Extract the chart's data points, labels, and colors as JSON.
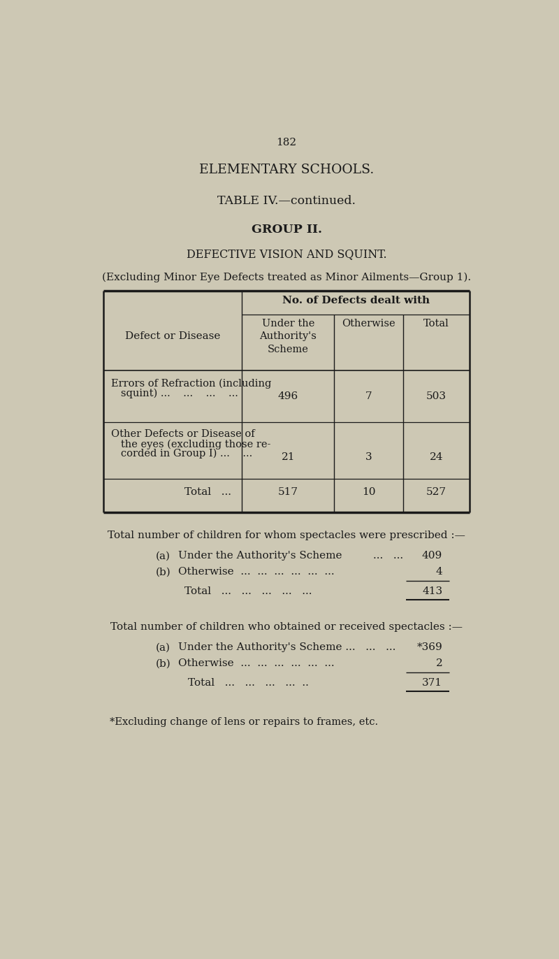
{
  "bg_color": "#cdc8b4",
  "text_color": "#1a1a1a",
  "page_number": "182",
  "title1": "ELEMENTARY SCHOOLS.",
  "title2": "TABLE IV.—continued.",
  "title3": "GROUP II.",
  "title4": "DEFECTIVE VISION AND SQUINT.",
  "subtitle": "(Excluding Minor Eye Defects treated as Minor Ailments—Group 1).",
  "table_header_main": "No. of Defects dealt with",
  "col_header1": "Under the\nAuthority's\nScheme",
  "col_header2": "Otherwise",
  "col_header3": "Total",
  "row_label_col": "Defect or Disease",
  "r1_label1": "Errors of Refraction (including",
  "r1_label2": "   squint) ...    ...    ...    ...",
  "r1_v1": "496",
  "r1_v2": "7",
  "r1_v3": "503",
  "r2_label1": "Other Defects or Disease of",
  "r2_label2": "   the eyes (excluding those re-",
  "r2_label3": "   corded in Group I) ...    ...",
  "r2_v1": "21",
  "r2_v2": "3",
  "r2_v3": "24",
  "tot_label": "Total   ...",
  "tot_v1": "517",
  "tot_v2": "10",
  "tot_v3": "527",
  "prescribed_header": "Total number of children for whom spectacles were prescribed :—",
  "p_a_label": "(a)  Under the Authority's Scheme",
  "p_a_dots": "...   ...",
  "p_a_val": "409",
  "p_b_label": "(b)  Otherwise  ...   ...   ...   ...   ...   ...",
  "p_b_val": "4",
  "p_tot_label": "Total   ...   ...   ...   ...   ...",
  "p_tot_val": "413",
  "obtained_header": "Total number of children who obtained or received spectacles :—",
  "o_a_label": "(a)  Under the Authority's Scheme ...   ...   ...",
  "o_a_val": "*369",
  "o_b_label": "(b)  Otherwise  ...   ...   ...   ...   ...   ...",
  "o_b_val": "2",
  "o_tot_label": "Total   ...   ...   ...   ...  ..",
  "o_tot_val": "371",
  "footnote": "*Excluding change of lens or repairs to frames, etc."
}
